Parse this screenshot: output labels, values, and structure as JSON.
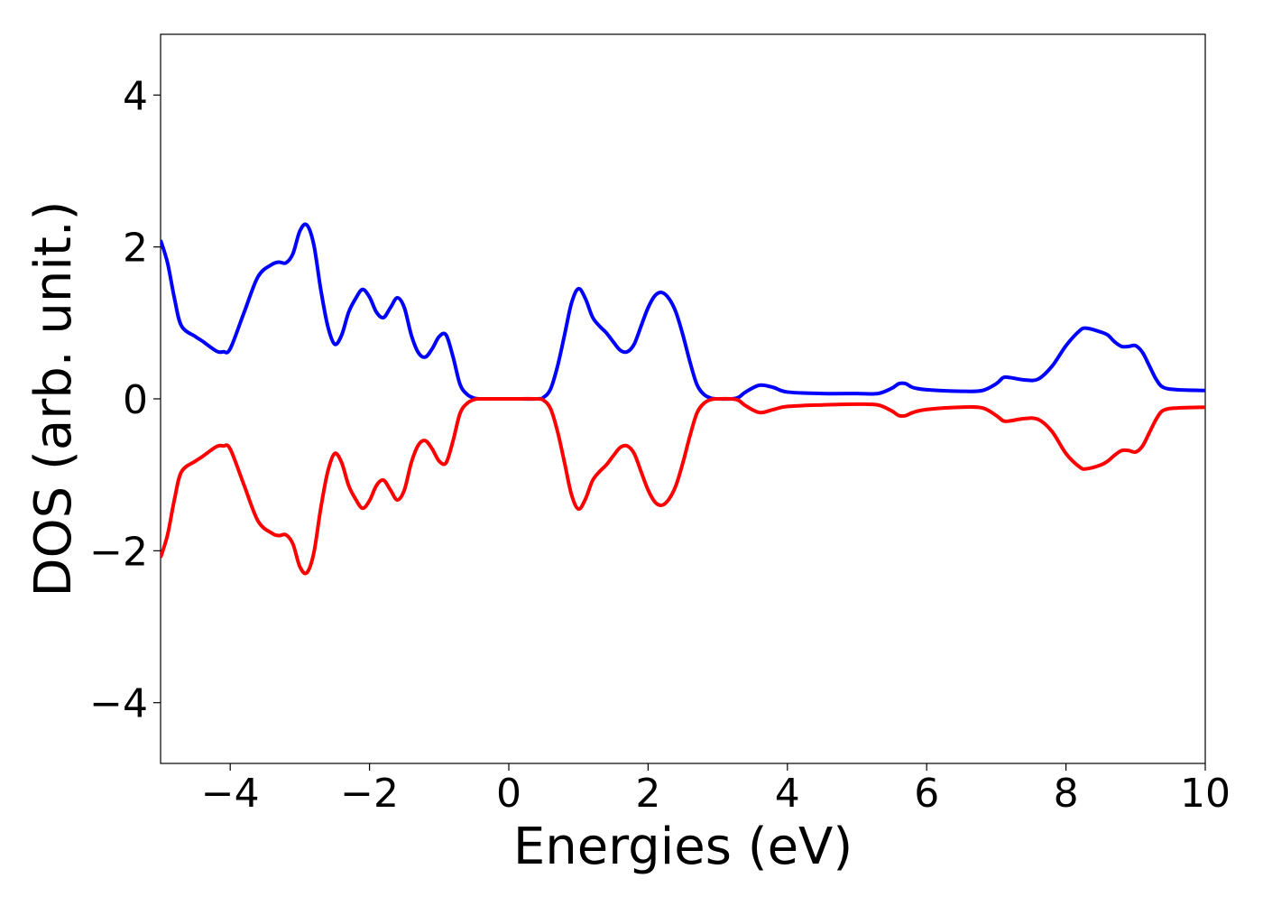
{
  "chart_data": {
    "type": "line",
    "x_label": "Energies (eV)",
    "y_label": "DOS (arb. unit.)",
    "x": [
      -5,
      -4.9,
      -4.8,
      -4.7,
      -4.5,
      -4.4,
      -4.2,
      -4.1,
      -4.0,
      -3.8,
      -3.6,
      -3.4,
      -3.3,
      -3.2,
      -3.1,
      -3.0,
      -2.9,
      -2.8,
      -2.7,
      -2.6,
      -2.5,
      -2.4,
      -2.3,
      -2.2,
      -2.1,
      -2.0,
      -1.9,
      -1.8,
      -1.7,
      -1.6,
      -1.5,
      -1.4,
      -1.3,
      -1.2,
      -1.1,
      -1.0,
      -0.9,
      -0.8,
      -0.7,
      -0.6,
      -0.5,
      -0.4,
      0,
      0.4,
      0.5,
      0.6,
      0.7,
      0.8,
      0.9,
      1.0,
      1.1,
      1.2,
      1.3,
      1.4,
      1.5,
      1.6,
      1.7,
      1.8,
      1.9,
      2.0,
      2.1,
      2.2,
      2.3,
      2.4,
      2.5,
      2.6,
      2.7,
      2.8,
      2.9,
      3.0,
      3.2,
      3.3,
      3.4,
      3.6,
      3.8,
      4.0,
      4.5,
      5.0,
      5.3,
      5.5,
      5.6,
      5.7,
      5.8,
      6.0,
      6.5,
      6.8,
      7.0,
      7.1,
      7.2,
      7.4,
      7.6,
      7.8,
      8.0,
      8.2,
      8.3,
      8.5,
      8.6,
      8.7,
      8.8,
      8.9,
      9.0,
      9.1,
      9.2,
      9.3,
      9.4,
      9.6,
      10
    ],
    "series": [
      {
        "color": "#0000ff",
        "values": [
          2.09,
          1.79,
          1.32,
          0.96,
          0.82,
          0.76,
          0.63,
          0.62,
          0.66,
          1.14,
          1.61,
          1.77,
          1.8,
          1.79,
          1.91,
          2.21,
          2.29,
          2.03,
          1.44,
          0.96,
          0.72,
          0.84,
          1.14,
          1.32,
          1.44,
          1.34,
          1.14,
          1.07,
          1.2,
          1.33,
          1.2,
          0.84,
          0.61,
          0.55,
          0.66,
          0.82,
          0.84,
          0.55,
          0.19,
          0.06,
          0.01,
          0,
          0,
          0,
          0.02,
          0.13,
          0.43,
          0.84,
          1.26,
          1.45,
          1.32,
          1.08,
          0.96,
          0.87,
          0.75,
          0.64,
          0.62,
          0.72,
          0.96,
          1.2,
          1.36,
          1.4,
          1.32,
          1.14,
          0.84,
          0.49,
          0.19,
          0.06,
          0.01,
          0,
          0,
          0.02,
          0.09,
          0.18,
          0.15,
          0.09,
          0.07,
          0.07,
          0.07,
          0.14,
          0.2,
          0.2,
          0.15,
          0.12,
          0.1,
          0.11,
          0.2,
          0.28,
          0.28,
          0.25,
          0.26,
          0.43,
          0.7,
          0.9,
          0.93,
          0.88,
          0.84,
          0.75,
          0.69,
          0.69,
          0.7,
          0.61,
          0.43,
          0.25,
          0.15,
          0.12,
          0.11
        ]
      },
      {
        "color": "#ff0000",
        "values": [
          -2.09,
          -1.79,
          -1.32,
          -0.96,
          -0.82,
          -0.76,
          -0.63,
          -0.62,
          -0.66,
          -1.14,
          -1.61,
          -1.77,
          -1.8,
          -1.79,
          -1.91,
          -2.21,
          -2.29,
          -2.03,
          -1.44,
          -0.96,
          -0.72,
          -0.84,
          -1.14,
          -1.32,
          -1.44,
          -1.34,
          -1.14,
          -1.07,
          -1.2,
          -1.33,
          -1.2,
          -0.84,
          -0.61,
          -0.55,
          -0.66,
          -0.82,
          -0.84,
          -0.55,
          -0.19,
          -0.06,
          -0.01,
          0,
          0,
          0,
          -0.02,
          -0.13,
          -0.43,
          -0.84,
          -1.26,
          -1.45,
          -1.32,
          -1.08,
          -0.96,
          -0.87,
          -0.75,
          -0.64,
          -0.62,
          -0.72,
          -0.96,
          -1.2,
          -1.36,
          -1.4,
          -1.32,
          -1.14,
          -0.84,
          -0.49,
          -0.19,
          -0.06,
          -0.01,
          0,
          0,
          -0.02,
          -0.09,
          -0.18,
          -0.14,
          -0.1,
          -0.08,
          -0.07,
          -0.08,
          -0.16,
          -0.22,
          -0.22,
          -0.18,
          -0.14,
          -0.11,
          -0.12,
          -0.22,
          -0.29,
          -0.29,
          -0.26,
          -0.27,
          -0.43,
          -0.72,
          -0.9,
          -0.92,
          -0.87,
          -0.82,
          -0.74,
          -0.68,
          -0.68,
          -0.7,
          -0.62,
          -0.44,
          -0.26,
          -0.15,
          -0.12,
          -0.11
        ]
      }
    ],
    "xlim": [
      -5,
      10
    ],
    "ylim": [
      -4.8,
      4.8
    ],
    "xticks": [
      {
        "value": -4,
        "label": "−4"
      },
      {
        "value": -2,
        "label": "−2"
      },
      0,
      2,
      4,
      6,
      8,
      10
    ],
    "yticks": [
      {
        "value": -4,
        "label": "−4"
      },
      {
        "value": -2,
        "label": "−2"
      },
      0,
      2,
      4
    ],
    "grid": false
  }
}
